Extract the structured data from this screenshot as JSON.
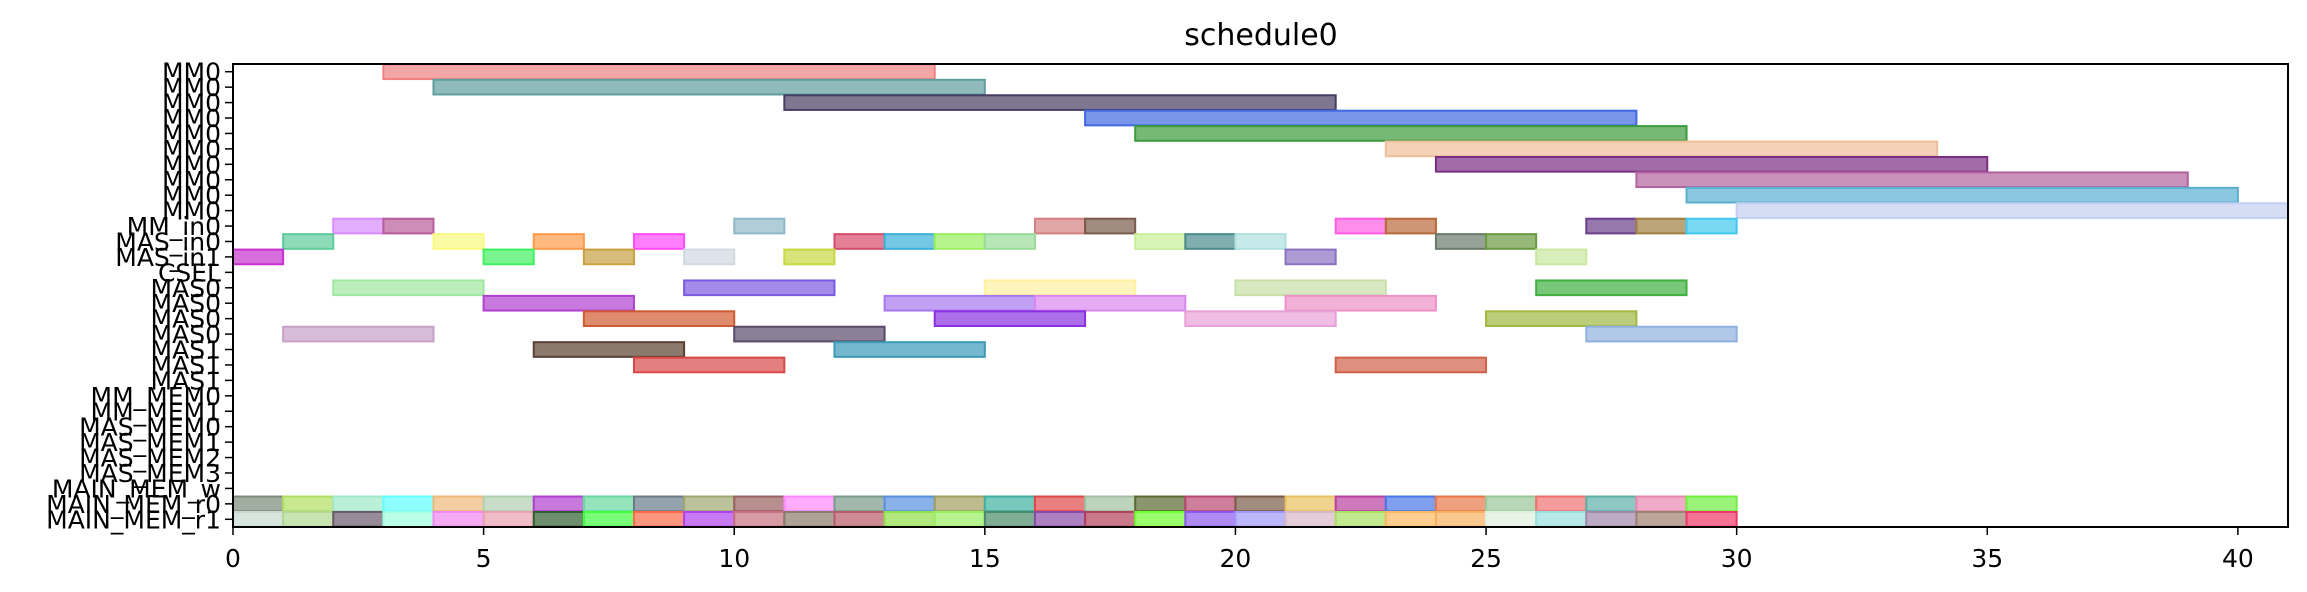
{
  "chart_data": {
    "type": "gantt",
    "title": "schedule0",
    "xlabel": "",
    "ylabel": "",
    "xlim": [
      0,
      41
    ],
    "x_ticks": [
      0,
      5,
      10,
      15,
      20,
      25,
      30,
      35,
      40
    ],
    "grid": false,
    "rows": [
      "MM0",
      "MM0",
      "MM0",
      "MM0",
      "MM0",
      "MM0",
      "MM0",
      "MM0",
      "MM0",
      "MM0",
      "MM_in0",
      "MAS_in0",
      "MAS_in1",
      "CSEL",
      "MAS0",
      "MAS0",
      "MAS0",
      "MAS0",
      "MAS1",
      "MAS1",
      "MAS1",
      "MM_MEM0",
      "MM_MEM1",
      "MAS_MEM0",
      "MAS_MEM1",
      "MAS_MEM2",
      "MAS_MEM3",
      "MAIN_MEM_w",
      "MAIN_MEM_r0",
      "MAIN_MEM_r1"
    ],
    "tasks": [
      {
        "row": 0,
        "start": 3,
        "end": 14,
        "color": "#f08080"
      },
      {
        "row": 1,
        "start": 4,
        "end": 15,
        "color": "#5f9ea0"
      },
      {
        "row": 2,
        "start": 11,
        "end": 22,
        "color": "#483d63"
      },
      {
        "row": 3,
        "start": 17,
        "end": 28,
        "color": "#4169e1"
      },
      {
        "row": 4,
        "start": 18,
        "end": 29,
        "color": "#3c9a3c"
      },
      {
        "row": 5,
        "start": 23,
        "end": 34,
        "color": "#eebf99"
      },
      {
        "row": 6,
        "start": 24,
        "end": 35,
        "color": "#7b2d83"
      },
      {
        "row": 7,
        "start": 28,
        "end": 39,
        "color": "#b2629e"
      },
      {
        "row": 8,
        "start": 29,
        "end": 40,
        "color": "#5aafd0"
      },
      {
        "row": 9,
        "start": 30,
        "end": 41,
        "color": "#c3cff0"
      },
      {
        "row": 10,
        "start": 2,
        "end": 3,
        "color": "#d98cff"
      },
      {
        "row": 10,
        "start": 3,
        "end": 4,
        "color": "#b85c9a"
      },
      {
        "row": 10,
        "start": 10,
        "end": 11,
        "color": "#8fb8c8"
      },
      {
        "row": 10,
        "start": 16,
        "end": 17,
        "color": "#d48080"
      },
      {
        "row": 10,
        "start": 17,
        "end": 18,
        "color": "#7a5a4a"
      },
      {
        "row": 10,
        "start": 22,
        "end": 23,
        "color": "#ff5ce1"
      },
      {
        "row": 10,
        "start": 23,
        "end": 24,
        "color": "#b96a3a"
      },
      {
        "row": 10,
        "start": 27,
        "end": 28,
        "color": "#6b3f8a"
      },
      {
        "row": 10,
        "start": 28,
        "end": 29,
        "color": "#9e8040"
      },
      {
        "row": 10,
        "start": 29,
        "end": 30,
        "color": "#40c8f0"
      },
      {
        "row": 11,
        "start": 1,
        "end": 2,
        "color": "#5ccc9a"
      },
      {
        "row": 11,
        "start": 4,
        "end": 5,
        "color": "#fafa80"
      },
      {
        "row": 11,
        "start": 6,
        "end": 7,
        "color": "#ff9a4a"
      },
      {
        "row": 11,
        "start": 8,
        "end": 9,
        "color": "#ff4aff"
      },
      {
        "row": 11,
        "start": 12,
        "end": 13,
        "color": "#d84a6a"
      },
      {
        "row": 11,
        "start": 13,
        "end": 14,
        "color": "#3ab0d8"
      },
      {
        "row": 11,
        "start": 14,
        "end": 15,
        "color": "#9af05c"
      },
      {
        "row": 11,
        "start": 15,
        "end": 16,
        "color": "#98dc98"
      },
      {
        "row": 11,
        "start": 18,
        "end": 19,
        "color": "#c8f098"
      },
      {
        "row": 11,
        "start": 19,
        "end": 20,
        "color": "#4a8a8a"
      },
      {
        "row": 11,
        "start": 20,
        "end": 21,
        "color": "#b0e0e0"
      },
      {
        "row": 11,
        "start": 24,
        "end": 25,
        "color": "#6a7a6a"
      },
      {
        "row": 11,
        "start": 25,
        "end": 26,
        "color": "#6a9a40"
      },
      {
        "row": 12,
        "start": 0,
        "end": 1,
        "color": "#c830d0"
      },
      {
        "row": 12,
        "start": 5,
        "end": 6,
        "color": "#40f060"
      },
      {
        "row": 12,
        "start": 7,
        "end": 8,
        "color": "#c8a040"
      },
      {
        "row": 12,
        "start": 9,
        "end": 10,
        "color": "#d0d8e0"
      },
      {
        "row": 12,
        "start": 11,
        "end": 12,
        "color": "#c8d840"
      },
      {
        "row": 12,
        "start": 21,
        "end": 22,
        "color": "#8a70c0"
      },
      {
        "row": 12,
        "start": 26,
        "end": 27,
        "color": "#c8e8a0"
      },
      {
        "row": 14,
        "start": 2,
        "end": 5,
        "color": "#a0e8a0"
      },
      {
        "row": 14,
        "start": 9,
        "end": 12,
        "color": "#7a5ae0"
      },
      {
        "row": 14,
        "start": 15,
        "end": 18,
        "color": "#fff0a0"
      },
      {
        "row": 14,
        "start": 20,
        "end": 23,
        "color": "#c8e0a8"
      },
      {
        "row": 14,
        "start": 26,
        "end": 29,
        "color": "#40b040"
      },
      {
        "row": 15,
        "start": 5,
        "end": 8,
        "color": "#b040d0"
      },
      {
        "row": 15,
        "start": 13,
        "end": 16,
        "color": "#a878f0"
      },
      {
        "row": 15,
        "start": 16,
        "end": 19,
        "color": "#d888f0"
      },
      {
        "row": 15,
        "start": 21,
        "end": 24,
        "color": "#f090c8"
      },
      {
        "row": 16,
        "start": 7,
        "end": 10,
        "color": "#d05a30"
      },
      {
        "row": 16,
        "start": 14,
        "end": 17,
        "color": "#8a30e0"
      },
      {
        "row": 16,
        "start": 19,
        "end": 22,
        "color": "#e8a0d8"
      },
      {
        "row": 16,
        "start": 25,
        "end": 28,
        "color": "#a0b840"
      },
      {
        "row": 17,
        "start": 1,
        "end": 4,
        "color": "#c8a0c8"
      },
      {
        "row": 17,
        "start": 10,
        "end": 13,
        "color": "#5a4a6a"
      },
      {
        "row": 17,
        "start": 27,
        "end": 30,
        "color": "#90b0e0"
      },
      {
        "row": 18,
        "start": 6,
        "end": 9,
        "color": "#5a4030"
      },
      {
        "row": 18,
        "start": 12,
        "end": 15,
        "color": "#3a9ab8"
      },
      {
        "row": 19,
        "start": 8,
        "end": 11,
        "color": "#d84848"
      },
      {
        "row": 19,
        "start": 22,
        "end": 25,
        "color": "#d06048"
      }
    ],
    "mem_rows": {
      "w": [
        "#7a8a7a",
        "#b0e060",
        "#a0e8c8",
        "#60ffff",
        "#f0b878",
        "#b0d0b0",
        "#b040d0",
        "#6ad8a0",
        "#6a7a8a",
        "#a0a870",
        "#9a6060",
        "#ff88ff",
        "#7a9a8a",
        "#5a90e0",
        "#a0a060",
        "#40b0a0",
        "#e04848",
        "#a0c0a0",
        "#5a6a30",
        "#b84870",
        "#7a5a48",
        "#e8c060",
        "#b840a0",
        "#4a78e8",
        "#e87848",
        "#98c898",
        "#f07070",
        "#60b0a8",
        "#e888b0",
        "#70f040"
      ],
      "r0": [
        "#c8d8d0",
        "#b0d890",
        "#6a5a6a",
        "#a0ffe0",
        "#f088f0",
        "#e8a0b0",
        "#306030",
        "#40ff40",
        "#ff6a4a",
        "#b040f0",
        "#c87080",
        "#8a7a6a",
        "#b85a6a",
        "#90e048",
        "#98f060",
        "#4a8a6a",
        "#8a4aa8",
        "#b0405a",
        "#70ff30",
        "#8a58f0",
        "#a098f8",
        "#d8b8c8",
        "#a8e060",
        "#ffb860",
        "#f8b060",
        "#e0f0e0",
        "#98e0e0",
        "#a088a8",
        "#a08070",
        "#f03868"
      ]
    }
  }
}
